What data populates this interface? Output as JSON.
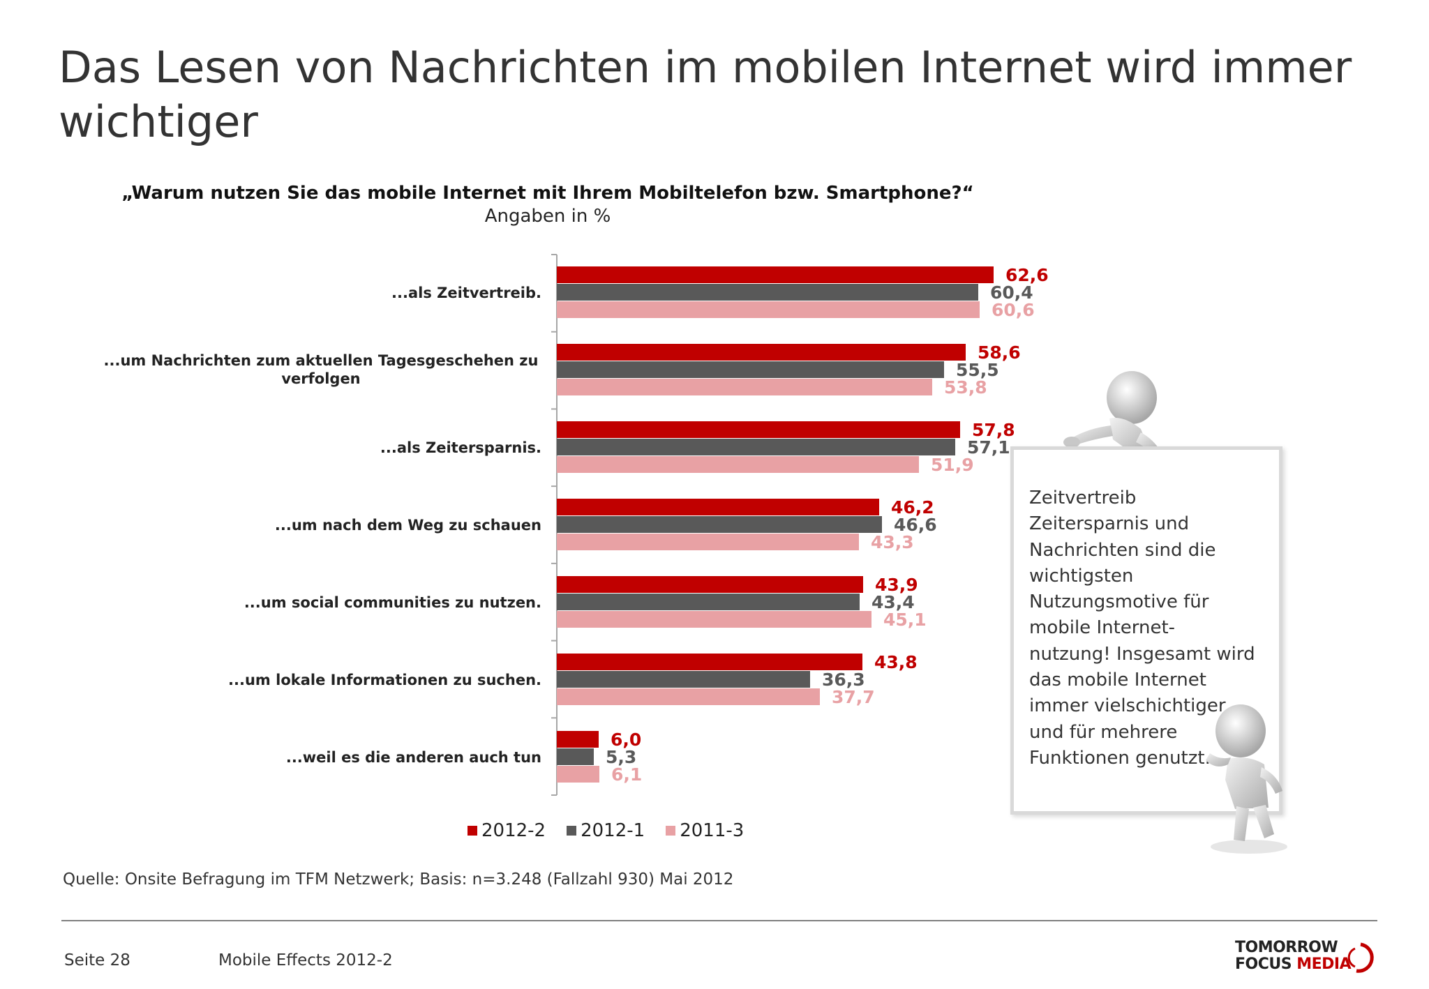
{
  "slide": {
    "title": "Das Lesen von Nachrichten im mobilen Internet wird immer wichtiger",
    "question": "„Warum nutzen Sie das mobile Internet mit Ihrem Mobiltelefon bzw. Smartphone?“",
    "unit": "Angaben in %",
    "source": "Quelle: Onsite Befragung im TFM Netzwerk; Basis: n=3.248 (Fallzahl 930) Mai 2012",
    "note": "Zeitvertreib Zeitersparnis und Nachrichten sind die wichtigsten Nutzungsmotive für mobile Internet-nutzung! Insgesamt wird das mobile Internet immer vielschichtiger und für mehrere Funktionen genutzt.",
    "note_lines": [
      "Zeitvertreib",
      "Zeitersparnis und",
      "Nachrichten sind die",
      "wichtigsten",
      "Nutzungsmotive für",
      "mobile Internet-",
      "nutzung! Insgesamt wird",
      "das mobile Internet",
      "immer vielschichtiger",
      "und für mehrere",
      "Funktionen genutzt."
    ]
  },
  "footer": {
    "page": "Seite 28",
    "document": "Mobile Effects 2012-2",
    "logo_line1": "TOMORROW",
    "logo_line2_a": "FOCUS ",
    "logo_line2_b": "MEDIA"
  },
  "chart_data": {
    "type": "bar",
    "orientation": "horizontal",
    "categories": [
      "...als Zeitvertreib.",
      "...um Nachrichten zum aktuellen Tagesgeschehen zu verfolgen",
      "...als Zeitersparnis.",
      "...um nach dem Weg zu schauen",
      "...um social communities zu nutzen.",
      "...um lokale Informationen zu suchen.",
      "...weil es die anderen auch tun"
    ],
    "series": [
      {
        "name": "2012-2",
        "color": "#c00000",
        "values": [
          62.6,
          58.6,
          57.8,
          46.2,
          43.9,
          43.8,
          6.0
        ],
        "labels": [
          "62,6",
          "58,6",
          "57,8",
          "46,2",
          "43,9",
          "43,8",
          "6,0"
        ]
      },
      {
        "name": "2012-1",
        "color": "#595959",
        "values": [
          60.4,
          55.5,
          57.1,
          46.6,
          43.4,
          36.3,
          5.3
        ],
        "labels": [
          "60,4",
          "55,5",
          "57,1",
          "46,6",
          "43,4",
          "36,3",
          "5,3"
        ]
      },
      {
        "name": "2011-3",
        "color": "#e8a1a4",
        "values": [
          60.6,
          53.8,
          51.9,
          43.3,
          45.1,
          37.7,
          6.1
        ],
        "labels": [
          "60,6",
          "53,8",
          "51,9",
          "43,3",
          "45,1",
          "37,7",
          "6,1"
        ]
      }
    ],
    "xlim": [
      0,
      100
    ],
    "grid": false,
    "legend": "bottom"
  }
}
